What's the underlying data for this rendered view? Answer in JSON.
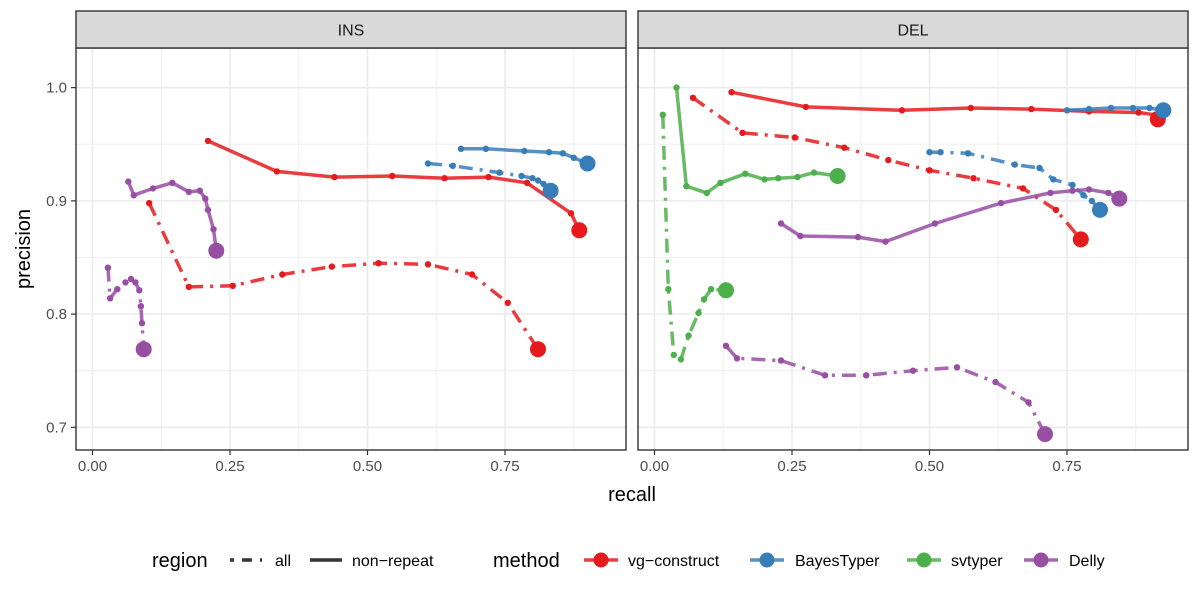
{
  "chart_data": {
    "type": "line",
    "xlabel": "recall",
    "ylabel": "precision",
    "xlim": [
      -0.03,
      0.97
    ],
    "ylim": [
      0.68,
      1.035
    ],
    "x_ticks": [
      0,
      0.25,
      0.5,
      0.75
    ],
    "x_tick_labels": [
      "0.00",
      "0.25",
      "0.50",
      "0.75"
    ],
    "y_ticks": [
      0.7,
      0.8,
      0.9,
      1.0
    ],
    "y_tick_labels": [
      "0.7",
      "0.8",
      "0.9",
      "1.0"
    ],
    "grid": true,
    "legend_position": "bottom",
    "legend": {
      "region_title": "region",
      "region_items": [
        {
          "label": "all",
          "dash": "dash"
        },
        {
          "label": "non−repeat",
          "dash": "solid"
        }
      ],
      "method_title": "method",
      "method_items": [
        {
          "label": "vg−construct",
          "color": "#E41A1C"
        },
        {
          "label": "BayesTyper",
          "color": "#377EB8"
        },
        {
          "label": "svtyper",
          "color": "#4DAF4A"
        },
        {
          "label": "Delly",
          "color": "#984EA3"
        }
      ]
    },
    "facets": [
      {
        "label": "INS",
        "series": [
          {
            "method": "vg−construct",
            "region": "non−repeat",
            "x": [
              0.21,
              0.335,
              0.44,
              0.545,
              0.64,
              0.72,
              0.79,
              0.87,
              0.885
            ],
            "y": [
              0.953,
              0.926,
              0.921,
              0.922,
              0.92,
              0.921,
              0.916,
              0.889,
              0.874
            ]
          },
          {
            "method": "vg−construct",
            "region": "all",
            "x": [
              0.103,
              0.175,
              0.255,
              0.345,
              0.435,
              0.52,
              0.61,
              0.69,
              0.755,
              0.81
            ],
            "y": [
              0.898,
              0.824,
              0.825,
              0.835,
              0.842,
              0.845,
              0.844,
              0.835,
              0.81,
              0.769
            ]
          },
          {
            "method": "BayesTyper",
            "region": "non−repeat",
            "x": [
              0.67,
              0.715,
              0.785,
              0.83,
              0.855,
              0.875,
              0.9
            ],
            "y": [
              0.946,
              0.946,
              0.944,
              0.943,
              0.942,
              0.938,
              0.933
            ]
          },
          {
            "method": "BayesTyper",
            "region": "all",
            "x": [
              0.61,
              0.655,
              0.74,
              0.78,
              0.8,
              0.81,
              0.82,
              0.833
            ],
            "y": [
              0.933,
              0.931,
              0.925,
              0.922,
              0.92,
              0.918,
              0.915,
              0.909
            ]
          },
          {
            "method": "svtyper",
            "region": "non−repeat",
            "x": [],
            "y": []
          },
          {
            "method": "svtyper",
            "region": "all",
            "x": [],
            "y": []
          },
          {
            "method": "Delly",
            "region": "non−repeat",
            "x": [
              0.065,
              0.075,
              0.11,
              0.145,
              0.175,
              0.195,
              0.205,
              0.21,
              0.22,
              0.225
            ],
            "y": [
              0.917,
              0.905,
              0.911,
              0.916,
              0.908,
              0.909,
              0.902,
              0.892,
              0.875,
              0.856
            ]
          },
          {
            "method": "Delly",
            "region": "all",
            "x": [
              0.028,
              0.032,
              0.045,
              0.06,
              0.07,
              0.078,
              0.085,
              0.088,
              0.09,
              0.093
            ],
            "y": [
              0.841,
              0.814,
              0.822,
              0.828,
              0.831,
              0.828,
              0.821,
              0.807,
              0.792,
              0.769
            ]
          }
        ]
      },
      {
        "label": "DEL",
        "series": [
          {
            "method": "vg−construct",
            "region": "non−repeat",
            "x": [
              0.14,
              0.275,
              0.45,
              0.575,
              0.685,
              0.79,
              0.88,
              0.91,
              0.915
            ],
            "y": [
              0.996,
              0.983,
              0.98,
              0.982,
              0.981,
              0.979,
              0.978,
              0.976,
              0.972
            ]
          },
          {
            "method": "vg−construct",
            "region": "all",
            "x": [
              0.07,
              0.16,
              0.255,
              0.345,
              0.425,
              0.5,
              0.58,
              0.67,
              0.73,
              0.775
            ],
            "y": [
              0.991,
              0.96,
              0.956,
              0.947,
              0.936,
              0.927,
              0.92,
              0.911,
              0.892,
              0.866
            ]
          },
          {
            "method": "BayesTyper",
            "region": "non−repeat",
            "x": [
              0.75,
              0.79,
              0.83,
              0.87,
              0.9,
              0.925
            ],
            "y": [
              0.98,
              0.981,
              0.982,
              0.982,
              0.982,
              0.98
            ]
          },
          {
            "method": "BayesTyper",
            "region": "all",
            "x": [
              0.5,
              0.52,
              0.57,
              0.655,
              0.7,
              0.725,
              0.76,
              0.78,
              0.795,
              0.81
            ],
            "y": [
              0.943,
              0.943,
              0.942,
              0.932,
              0.929,
              0.919,
              0.914,
              0.905,
              0.9,
              0.892
            ]
          },
          {
            "method": "svtyper",
            "region": "non−repeat",
            "x": [
              0.04,
              0.058,
              0.095,
              0.12,
              0.165,
              0.2,
              0.225,
              0.26,
              0.29,
              0.333
            ],
            "y": [
              1.0,
              0.913,
              0.907,
              0.916,
              0.924,
              0.919,
              0.92,
              0.921,
              0.925,
              0.922
            ]
          },
          {
            "method": "svtyper",
            "region": "all",
            "x": [
              0.015,
              0.025,
              0.035,
              0.048,
              0.062,
              0.08,
              0.09,
              0.103,
              0.13
            ],
            "y": [
              0.976,
              0.822,
              0.764,
              0.76,
              0.781,
              0.801,
              0.813,
              0.822,
              0.821
            ]
          },
          {
            "method": "Delly",
            "region": "non−repeat",
            "x": [
              0.23,
              0.265,
              0.37,
              0.42,
              0.51,
              0.63,
              0.72,
              0.76,
              0.79,
              0.825,
              0.845
            ],
            "y": [
              0.88,
              0.869,
              0.868,
              0.864,
              0.88,
              0.898,
              0.907,
              0.909,
              0.91,
              0.907,
              0.902
            ]
          },
          {
            "method": "Delly",
            "region": "all",
            "x": [
              0.13,
              0.15,
              0.23,
              0.31,
              0.385,
              0.47,
              0.55,
              0.62,
              0.68,
              0.71
            ],
            "y": [
              0.772,
              0.761,
              0.759,
              0.746,
              0.746,
              0.75,
              0.753,
              0.74,
              0.722,
              0.694
            ]
          }
        ]
      }
    ]
  }
}
